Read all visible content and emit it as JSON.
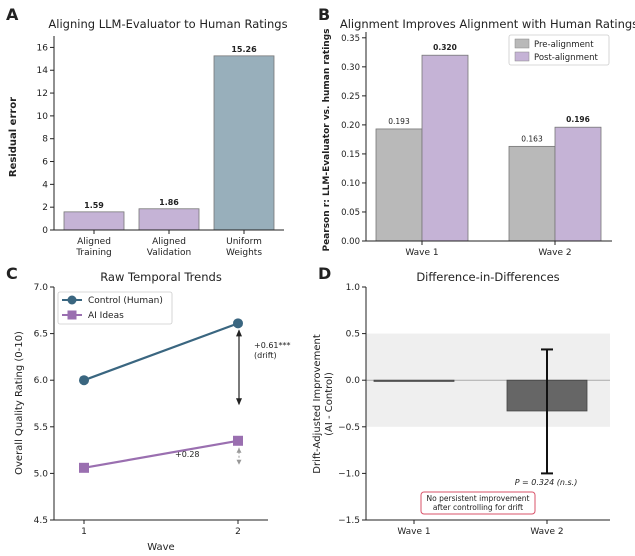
{
  "chart_data": [
    {
      "panel": "A",
      "type": "bar",
      "title": "Aligning LLM-Evaluator to Human Ratings",
      "ylabel": "Residual error",
      "categories": [
        "Aligned\nTraining",
        "Aligned\nValidation",
        "Uniform\nWeights"
      ],
      "values": [
        1.59,
        1.86,
        15.26
      ],
      "value_labels": [
        "1.59",
        "1.86",
        "15.26"
      ],
      "colors": [
        "#c5b3d6",
        "#c5b3d6",
        "#98afbb"
      ],
      "ylim": [
        0,
        17
      ],
      "yticks": [
        0,
        2,
        4,
        6,
        8,
        10,
        12,
        14,
        16
      ]
    },
    {
      "panel": "B",
      "type": "bar",
      "title": "Alignment Improves Alignment with Human Ratings",
      "ylabel": "Pearson r: LLM-Evaluator vs. human ratings",
      "categories": [
        "Wave 1",
        "Wave 2"
      ],
      "series": [
        {
          "name": "Pre-alignment",
          "values": [
            0.193,
            0.163
          ],
          "labels": [
            "0.193",
            "0.163"
          ],
          "color": "#b9b9b9"
        },
        {
          "name": "Post-alignment",
          "values": [
            0.32,
            0.196
          ],
          "labels": [
            "0.320",
            "0.196"
          ],
          "color": "#c5b3d6"
        }
      ],
      "ylim": [
        0,
        0.36
      ],
      "yticks": [
        "0.00",
        "0.05",
        "0.10",
        "0.15",
        "0.20",
        "0.25",
        "0.30",
        "0.35"
      ],
      "legend": "top-right"
    },
    {
      "panel": "C",
      "type": "line",
      "title": "Raw Temporal Trends",
      "xlabel": "Wave",
      "ylabel": "Overall Quality Rating (0-10)",
      "x": [
        1,
        2
      ],
      "xticks": [
        "1",
        "2"
      ],
      "series": [
        {
          "name": "Control (Human)",
          "values": [
            6.0,
            6.61
          ],
          "color": "#3a6680",
          "marker": "circle"
        },
        {
          "name": "AI Ideas",
          "values": [
            5.06,
            5.35
          ],
          "color": "#9a6fb0",
          "marker": "square"
        }
      ],
      "annotations": [
        "+0.61***",
        "(drift)",
        "+0.28"
      ],
      "ylim": [
        4.5,
        7.0
      ],
      "yticks": [
        "4.5",
        "5.0",
        "5.5",
        "6.0",
        "6.5",
        "7.0"
      ],
      "legend": "top-left"
    },
    {
      "panel": "D",
      "type": "bar",
      "title": "Difference-in-Differences",
      "ylabel": "Drift-Adjusted Improvement\n(AI - Control)",
      "categories": [
        "Wave 1",
        "Wave 2"
      ],
      "values": [
        0.0,
        -0.33
      ],
      "ci_low": [
        null,
        -1.0
      ],
      "ci_high": [
        null,
        0.33
      ],
      "band": [
        -0.5,
        0.5
      ],
      "p_label": "P = 0.324 (n.s.)",
      "note": [
        "No persistent improvement",
        "after controlling for drift"
      ],
      "ylim": [
        -1.5,
        1.0
      ],
      "yticks": [
        "-1.5",
        "-1.0",
        "-0.5",
        "0.0",
        "0.5",
        "1.0"
      ]
    }
  ],
  "panel_letters": [
    "A",
    "B",
    "C",
    "D"
  ]
}
